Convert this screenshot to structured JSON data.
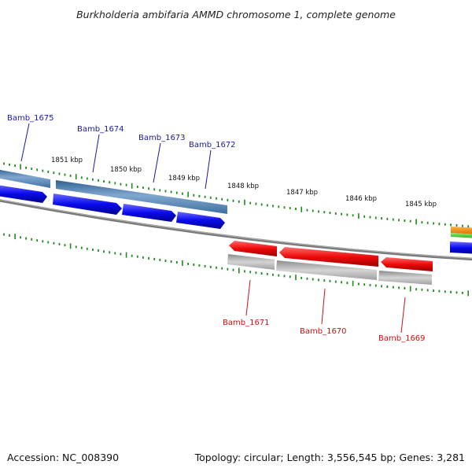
{
  "title": "Burkholderia ambifaria AMMD chromosome 1, complete genome",
  "footer": {
    "accession": "Accession: NC_008390",
    "summary": "Topology: circular; Length: 3,556,545 bp; Genes: 3,281"
  },
  "kbp_labels": [
    "1851 kbp",
    "1850 kbp",
    "1849 kbp",
    "1848 kbp",
    "1847 kbp",
    "1846 kbp",
    "1845 kbp"
  ],
  "forward_genes": [
    {
      "name": "Bamb_1675"
    },
    {
      "name": "Bamb_1674"
    },
    {
      "name": "Bamb_1673"
    },
    {
      "name": "Bamb_1672"
    }
  ],
  "reverse_genes": [
    {
      "name": "Bamb_1671"
    },
    {
      "name": "Bamb_1670"
    },
    {
      "name": "Bamb_1669"
    }
  ],
  "colors": {
    "forward_cds": "#0a0aee",
    "forward_gene": "#4f7fb0",
    "reverse_cds": "#ee0a0a",
    "reverse_gene": "#b8b8b8",
    "backbone": "#7a7a7a",
    "ticks": "#1f8a1f",
    "orange_feature": "#ee8a00",
    "green_feature": "#55cc33"
  }
}
